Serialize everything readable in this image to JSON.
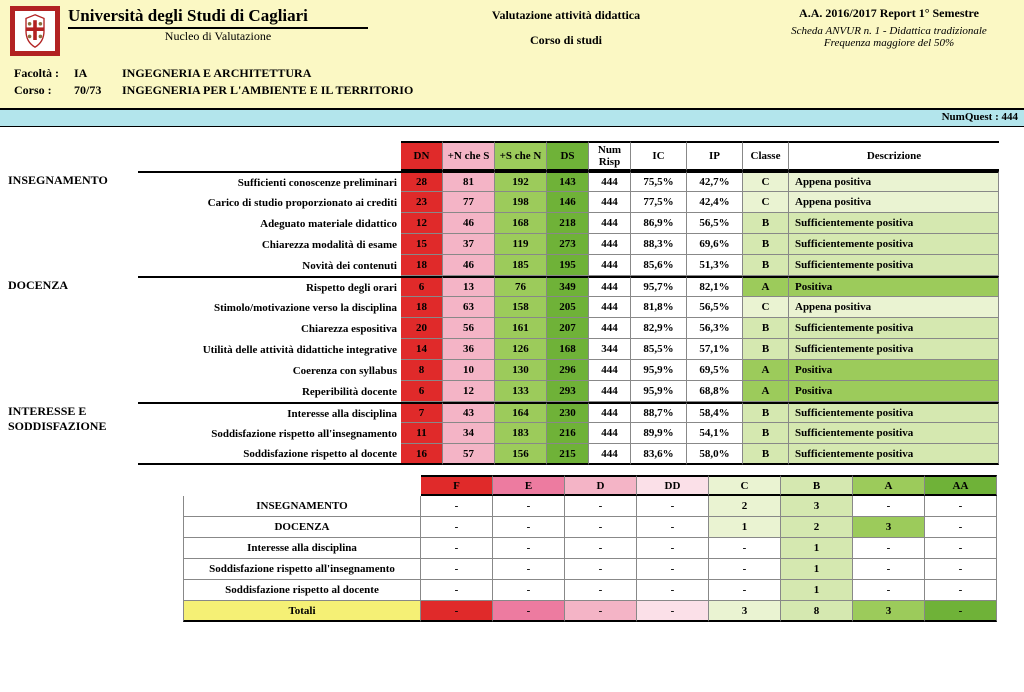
{
  "header": {
    "university": "Università degli Studi di Cagliari",
    "subtitle": "Nucleo di Valutazione",
    "mid1": "Valutazione attività didattica",
    "mid2": "Corso di studi",
    "right1": "A.A. 2016/2017   Report 1° Semestre",
    "right2": "Scheda ANVUR n. 1 - Didattica tradizionale",
    "right3": "Frequenza maggiore del 50%",
    "fac_label": "Facoltà :",
    "fac_code": "IA",
    "fac_name": "INGEGNERIA E ARCHITETTURA",
    "corso_label": "Corso :",
    "corso_code": "70/73",
    "corso_name": "INGEGNERIA PER L'AMBIENTE E IL TERRITORIO",
    "numquest": "NumQuest : 444"
  },
  "colors": {
    "dn": "#e02a2a",
    "nches": "#f4b4c6",
    "schen": "#9ccb5b",
    "ds": "#6fb238",
    "class_A": "#9ccb5b",
    "class_B": "#d5e8b0",
    "class_C": "#eaf3d2",
    "pale_yellow": "#fbf8c4",
    "t2_F": "#e02a2a",
    "t2_E": "#ed7ba0",
    "t2_D": "#f4b4c6",
    "t2_DD": "#fbe0e8",
    "t2_C": "#eaf3d2",
    "t2_B": "#d5e8b0",
    "t2_A": "#9ccb5b",
    "t2_AA": "#6fb238",
    "tot_yellow": "#f5f075"
  },
  "t1": {
    "headers": [
      "DN",
      "+N che S",
      "+S che N",
      "DS",
      "Num Risp",
      "IC",
      "IP",
      "Classe",
      "Descrizione"
    ],
    "groups": [
      {
        "name": "INSEGNAMENTO",
        "rows": [
          {
            "label": "Sufficienti conoscenze preliminari",
            "dn": 28,
            "nches": 81,
            "schen": 192,
            "ds": 143,
            "risp": 444,
            "ic": "75,5%",
            "ip": "42,7%",
            "cl": "C",
            "desc": "Appena positiva"
          },
          {
            "label": "Carico di studio proporzionato ai crediti",
            "dn": 23,
            "nches": 77,
            "schen": 198,
            "ds": 146,
            "risp": 444,
            "ic": "77,5%",
            "ip": "42,4%",
            "cl": "C",
            "desc": "Appena positiva"
          },
          {
            "label": "Adeguato materiale didattico",
            "dn": 12,
            "nches": 46,
            "schen": 168,
            "ds": 218,
            "risp": 444,
            "ic": "86,9%",
            "ip": "56,5%",
            "cl": "B",
            "desc": "Sufficientemente positiva"
          },
          {
            "label": "Chiarezza modalità di esame",
            "dn": 15,
            "nches": 37,
            "schen": 119,
            "ds": 273,
            "risp": 444,
            "ic": "88,3%",
            "ip": "69,6%",
            "cl": "B",
            "desc": "Sufficientemente positiva"
          },
          {
            "label": "Novità dei contenuti",
            "dn": 18,
            "nches": 46,
            "schen": 185,
            "ds": 195,
            "risp": 444,
            "ic": "85,6%",
            "ip": "51,3%",
            "cl": "B",
            "desc": "Sufficientemente positiva"
          }
        ]
      },
      {
        "name": "DOCENZA",
        "rows": [
          {
            "label": "Rispetto degli orari",
            "dn": 6,
            "nches": 13,
            "schen": 76,
            "ds": 349,
            "risp": 444,
            "ic": "95,7%",
            "ip": "82,1%",
            "cl": "A",
            "desc": "Positiva"
          },
          {
            "label": "Stimolo/motivazione verso la disciplina",
            "dn": 18,
            "nches": 63,
            "schen": 158,
            "ds": 205,
            "risp": 444,
            "ic": "81,8%",
            "ip": "56,5%",
            "cl": "C",
            "desc": "Appena positiva"
          },
          {
            "label": "Chiarezza espositiva",
            "dn": 20,
            "nches": 56,
            "schen": 161,
            "ds": 207,
            "risp": 444,
            "ic": "82,9%",
            "ip": "56,3%",
            "cl": "B",
            "desc": "Sufficientemente positiva"
          },
          {
            "label": "Utilità delle attività didattiche integrative",
            "dn": 14,
            "nches": 36,
            "schen": 126,
            "ds": 168,
            "risp": 344,
            "ic": "85,5%",
            "ip": "57,1%",
            "cl": "B",
            "desc": "Sufficientemente positiva"
          },
          {
            "label": "Coerenza con syllabus",
            "dn": 8,
            "nches": 10,
            "schen": 130,
            "ds": 296,
            "risp": 444,
            "ic": "95,9%",
            "ip": "69,5%",
            "cl": "A",
            "desc": "Positiva"
          },
          {
            "label": "Reperibilità docente",
            "dn": 6,
            "nches": 12,
            "schen": 133,
            "ds": 293,
            "risp": 444,
            "ic": "95,9%",
            "ip": "68,8%",
            "cl": "A",
            "desc": "Positiva"
          }
        ]
      },
      {
        "name": "INTERESSE E SODDISFAZIONE",
        "rows": [
          {
            "label": "Interesse alla disciplina",
            "dn": 7,
            "nches": 43,
            "schen": 164,
            "ds": 230,
            "risp": 444,
            "ic": "88,7%",
            "ip": "58,4%",
            "cl": "B",
            "desc": "Sufficientemente positiva"
          },
          {
            "label": "Soddisfazione rispetto all'insegnamento",
            "dn": 11,
            "nches": 34,
            "schen": 183,
            "ds": 216,
            "risp": 444,
            "ic": "89,9%",
            "ip": "54,1%",
            "cl": "B",
            "desc": "Sufficientemente positiva"
          },
          {
            "label": "Soddisfazione rispetto al docente",
            "dn": 16,
            "nches": 57,
            "schen": 156,
            "ds": 215,
            "risp": 444,
            "ic": "83,6%",
            "ip": "58,0%",
            "cl": "B",
            "desc": "Sufficientemente positiva"
          }
        ]
      }
    ]
  },
  "t2": {
    "cols": [
      "F",
      "E",
      "D",
      "DD",
      "C",
      "B",
      "A",
      "AA"
    ],
    "rows": [
      {
        "label": "INSEGNAMENTO",
        "v": [
          "-",
          "-",
          "-",
          "-",
          "2",
          "3",
          "-",
          "-"
        ]
      },
      {
        "label": "DOCENZA",
        "v": [
          "-",
          "-",
          "-",
          "-",
          "1",
          "2",
          "3",
          "-"
        ]
      },
      {
        "label": "Interesse alla disciplina",
        "v": [
          "-",
          "-",
          "-",
          "-",
          "-",
          "1",
          "-",
          "-"
        ]
      },
      {
        "label": "Soddisfazione rispetto all'insegnamento",
        "v": [
          "-",
          "-",
          "-",
          "-",
          "-",
          "1",
          "-",
          "-"
        ]
      },
      {
        "label": "Soddisfazione rispetto al docente",
        "v": [
          "-",
          "-",
          "-",
          "-",
          "-",
          "1",
          "-",
          "-"
        ]
      }
    ],
    "totals_label": "Totali",
    "totals": [
      "-",
      "-",
      "-",
      "-",
      "3",
      "8",
      "3",
      "-"
    ]
  }
}
